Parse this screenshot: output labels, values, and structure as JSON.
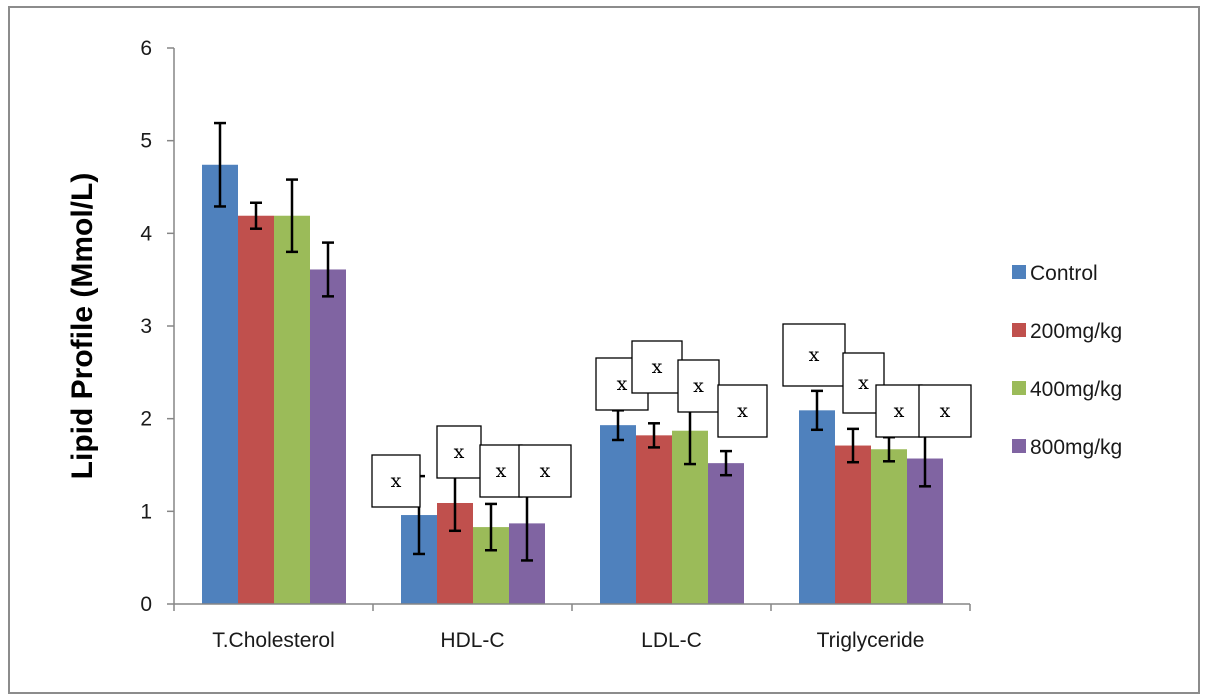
{
  "chart_data": {
    "type": "bar",
    "ylabel": "Lipid Profile (Mmol/L)",
    "xlabel": "",
    "ylim": [
      0,
      6
    ],
    "yticks": [
      "0",
      "1",
      "2",
      "3",
      "4",
      "5",
      "6"
    ],
    "categories": [
      "T.Cholesterol",
      "HDL-C",
      "LDL-C",
      "Triglyceride"
    ],
    "series": [
      {
        "name": "Control",
        "color": "#4f81bd",
        "values": [
          4.74,
          0.96,
          1.93,
          2.09
        ],
        "errors": [
          0.45,
          0.42,
          0.16,
          0.21
        ]
      },
      {
        "name": "200mg/kg",
        "color": "#c0504d",
        "values": [
          4.19,
          1.09,
          1.82,
          1.71
        ],
        "errors": [
          0.14,
          0.3,
          0.13,
          0.18
        ]
      },
      {
        "name": "400mg/kg",
        "color": "#9bbb59",
        "values": [
          4.19,
          0.83,
          1.87,
          1.67
        ],
        "errors": [
          0.39,
          0.25,
          0.36,
          0.13
        ]
      },
      {
        "name": "800mg/kg",
        "color": "#8064a2",
        "values": [
          3.61,
          0.87,
          1.52,
          1.57
        ],
        "errors": [
          0.29,
          0.4,
          0.13,
          0.3
        ]
      }
    ],
    "annotations": [
      {
        "text": "x",
        "category": 1,
        "series": 0
      },
      {
        "text": "x",
        "category": 1,
        "series": 1
      },
      {
        "text": "x",
        "category": 1,
        "series": 2
      },
      {
        "text": "x",
        "category": 1,
        "series": 3
      },
      {
        "text": "x",
        "category": 2,
        "series": 0
      },
      {
        "text": "x",
        "category": 2,
        "series": 1
      },
      {
        "text": "x",
        "category": 2,
        "series": 2
      },
      {
        "text": "x",
        "category": 2,
        "series": 3
      },
      {
        "text": "x",
        "category": 3,
        "series": 0
      },
      {
        "text": "x",
        "category": 3,
        "series": 1
      },
      {
        "text": "x",
        "category": 3,
        "series": 2
      },
      {
        "text": "x",
        "category": 3,
        "series": 3
      }
    ],
    "legend_position": "right",
    "grid": false
  }
}
